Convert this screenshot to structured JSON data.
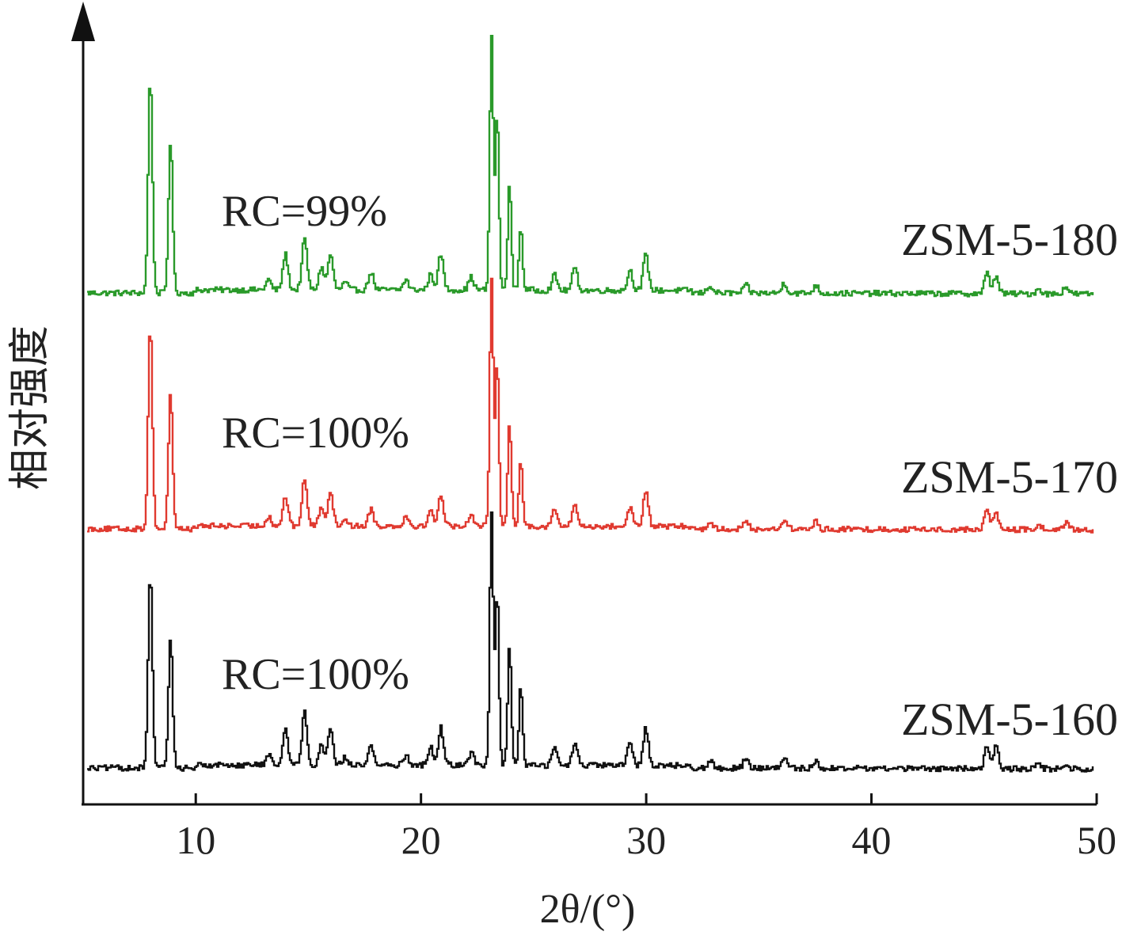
{
  "chart_data": {
    "type": "line",
    "xlabel": "2θ/(°)",
    "ylabel": "相对强度",
    "xlim": [
      5,
      50
    ],
    "xticks": [
      10,
      20,
      30,
      40,
      50
    ],
    "y_ticks_shown": false,
    "grid": false,
    "legend": "none",
    "series": [
      {
        "name": "ZSM-5-180",
        "annotation": "RC=99%",
        "color": "#2a9a2a",
        "peaks": [
          [
            7.95,
            0.86
          ],
          [
            8.85,
            0.6
          ],
          [
            13.2,
            0.04
          ],
          [
            13.95,
            0.14
          ],
          [
            14.8,
            0.2
          ],
          [
            15.55,
            0.09
          ],
          [
            15.95,
            0.14
          ],
          [
            16.6,
            0.03
          ],
          [
            17.75,
            0.07
          ],
          [
            19.3,
            0.04
          ],
          [
            20.4,
            0.06
          ],
          [
            20.85,
            0.14
          ],
          [
            22.2,
            0.05
          ],
          [
            23.1,
            1.0
          ],
          [
            23.35,
            0.7
          ],
          [
            23.9,
            0.42
          ],
          [
            24.4,
            0.25
          ],
          [
            25.9,
            0.06
          ],
          [
            26.8,
            0.09
          ],
          [
            29.25,
            0.08
          ],
          [
            29.95,
            0.14
          ],
          [
            32.8,
            0.03
          ],
          [
            34.4,
            0.03
          ],
          [
            36.1,
            0.04
          ],
          [
            37.5,
            0.03
          ],
          [
            45.1,
            0.08
          ],
          [
            45.5,
            0.07
          ],
          [
            47.4,
            0.02
          ],
          [
            48.6,
            0.03
          ]
        ]
      },
      {
        "name": "ZSM-5-170",
        "annotation": "RC=100%",
        "color": "#e03a30",
        "peaks": [
          [
            7.95,
            0.84
          ],
          [
            8.85,
            0.56
          ],
          [
            13.2,
            0.04
          ],
          [
            13.95,
            0.12
          ],
          [
            14.8,
            0.19
          ],
          [
            15.55,
            0.08
          ],
          [
            15.95,
            0.14
          ],
          [
            16.6,
            0.03
          ],
          [
            17.75,
            0.07
          ],
          [
            19.3,
            0.04
          ],
          [
            20.4,
            0.06
          ],
          [
            20.85,
            0.13
          ],
          [
            22.2,
            0.05
          ],
          [
            23.1,
            1.0
          ],
          [
            23.35,
            0.68
          ],
          [
            23.9,
            0.43
          ],
          [
            24.4,
            0.27
          ],
          [
            25.9,
            0.07
          ],
          [
            26.8,
            0.09
          ],
          [
            29.25,
            0.08
          ],
          [
            29.95,
            0.14
          ],
          [
            32.8,
            0.03
          ],
          [
            34.4,
            0.03
          ],
          [
            36.1,
            0.04
          ],
          [
            37.5,
            0.03
          ],
          [
            45.1,
            0.08
          ],
          [
            45.5,
            0.07
          ],
          [
            47.4,
            0.02
          ],
          [
            48.6,
            0.03
          ]
        ]
      },
      {
        "name": "ZSM-5-160",
        "annotation": "RC=100%",
        "color": "#111111",
        "peaks": [
          [
            7.95,
            0.79
          ],
          [
            8.85,
            0.52
          ],
          [
            13.2,
            0.04
          ],
          [
            13.95,
            0.15
          ],
          [
            14.8,
            0.21
          ],
          [
            15.55,
            0.08
          ],
          [
            15.95,
            0.15
          ],
          [
            16.6,
            0.03
          ],
          [
            17.75,
            0.08
          ],
          [
            19.3,
            0.04
          ],
          [
            20.4,
            0.07
          ],
          [
            20.85,
            0.15
          ],
          [
            22.2,
            0.05
          ],
          [
            23.1,
            1.0
          ],
          [
            23.35,
            0.7
          ],
          [
            23.9,
            0.48
          ],
          [
            24.4,
            0.32
          ],
          [
            25.9,
            0.07
          ],
          [
            26.8,
            0.09
          ],
          [
            29.25,
            0.09
          ],
          [
            29.95,
            0.15
          ],
          [
            32.8,
            0.03
          ],
          [
            34.4,
            0.04
          ],
          [
            36.1,
            0.04
          ],
          [
            37.5,
            0.03
          ],
          [
            45.1,
            0.09
          ],
          [
            45.5,
            0.09
          ],
          [
            47.4,
            0.02
          ],
          [
            48.6,
            0.02
          ]
        ]
      }
    ]
  }
}
